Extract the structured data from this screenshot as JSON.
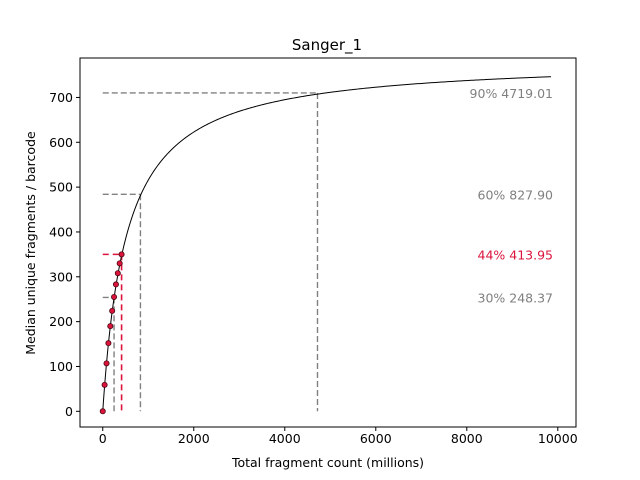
{
  "chart_data": {
    "type": "line",
    "title": "Sanger_1",
    "xlabel": "Total fragment count (millions)",
    "ylabel": "Median unique fragments / barcode",
    "xlim": [
      -500,
      10400
    ],
    "ylim": [
      -35,
      788
    ],
    "xticks": [
      0,
      2000,
      4000,
      6000,
      8000,
      10000
    ],
    "yticks": [
      0,
      100,
      200,
      300,
      400,
      500,
      600,
      700
    ],
    "grid": false,
    "saturation_curve": {
      "color": "#000000",
      "x_max": 9850,
      "model": "michaelis-menten",
      "vmax": 786,
      "km": 524
    },
    "sampled_points": {
      "color": "#dc143c",
      "x": [
        0,
        41,
        83,
        124,
        166,
        207,
        248,
        290,
        331,
        372,
        414
      ],
      "y": [
        0,
        59,
        107,
        152,
        190,
        224,
        255,
        283,
        308,
        330,
        350
      ]
    },
    "annotations": [
      {
        "label": "90% 4719.01",
        "x": 4719.01,
        "y": 710,
        "color": "#808080"
      },
      {
        "label": "60% 827.90",
        "x": 827.9,
        "y": 484,
        "color": "#808080"
      },
      {
        "label": "44% 413.95",
        "x": 413.95,
        "y": 350,
        "color": "#dc143c"
      },
      {
        "label": "30% 248.37",
        "x": 248.37,
        "y": 254,
        "color": "#808080"
      }
    ]
  }
}
